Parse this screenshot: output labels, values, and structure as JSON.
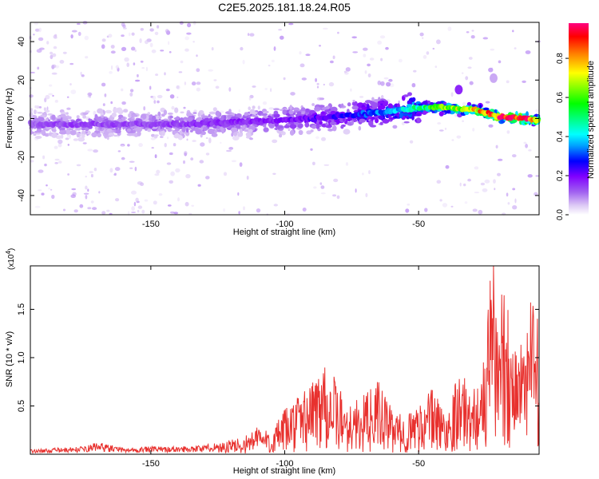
{
  "figure": {
    "title": "C2E5.2025.181.18.24.R05"
  },
  "chart_data": [
    {
      "type": "heatmap",
      "xlabel": "Height of straight line (km)",
      "ylabel": "Frequency (Hz)",
      "xlim": [
        -195,
        -5
      ],
      "ylim": [
        -50,
        50
      ],
      "x_ticks": [
        -150,
        -100,
        -50
      ],
      "y_ticks": [
        -40,
        -20,
        0,
        20,
        40
      ],
      "colorbar": {
        "label": "Normalized spectral amplitude",
        "range": [
          0.0,
          0.98
        ],
        "ticks": [
          0.0,
          0.2,
          0.4,
          0.6,
          0.8
        ],
        "colors": [
          "#ffffff",
          "#dcc8f5",
          "#a060f0",
          "#8000ff",
          "#0000ff",
          "#00a0ff",
          "#00ffff",
          "#00ff80",
          "#00ff00",
          "#80ff00",
          "#ffff00",
          "#ff8000",
          "#ff0000",
          "#ff0080"
        ]
      },
      "ridge": {
        "x": [
          -195,
          -180,
          -160,
          -140,
          -120,
          -100,
          -80,
          -60,
          -45,
          -30,
          -20,
          -10,
          -5
        ],
        "frequency": [
          -3,
          -3,
          -3,
          -3,
          -2,
          -1,
          1,
          4,
          6,
          5,
          1,
          0,
          -1
        ],
        "amplitude": [
          0.15,
          0.18,
          0.17,
          0.18,
          0.2,
          0.22,
          0.28,
          0.38,
          0.6,
          0.75,
          0.9,
          0.95,
          0.8
        ]
      },
      "features": [
        {
          "x": -35,
          "frequency": 15,
          "amplitude": 0.2
        },
        {
          "x": -22,
          "frequency": 21,
          "amplitude": 0.1
        }
      ]
    },
    {
      "type": "line",
      "xlabel": "Height of straight line (km)",
      "ylabel": "SNR (10 * v/v)",
      "y_multiplier": "(x10",
      "y_multiplier_exp": "4",
      "y_multiplier_close": ")",
      "xlim": [
        -195,
        -5
      ],
      "ylim": [
        0,
        1.95
      ],
      "x_ticks": [
        -150,
        -100,
        -50
      ],
      "y_ticks": [
        0.5,
        1.0,
        1.5
      ],
      "y_tick_labels": [
        "0.5",
        "1.0",
        "1.5"
      ],
      "line_color": "#e8312e",
      "series": [
        {
          "x": [
            -195,
            -185,
            -175,
            -170,
            -160,
            -150,
            -140,
            -130,
            -120,
            -115,
            -110,
            -105,
            -100,
            -95,
            -90,
            -85,
            -80,
            -75,
            -70,
            -65,
            -60,
            -55,
            -50,
            -45,
            -40,
            -35,
            -30,
            -25,
            -22,
            -20,
            -18,
            -15,
            -12,
            -10,
            -8,
            -5
          ],
          "y": [
            0.03,
            0.04,
            0.05,
            0.08,
            0.04,
            0.05,
            0.05,
            0.06,
            0.1,
            0.12,
            0.2,
            0.15,
            0.3,
            0.4,
            0.5,
            0.7,
            0.45,
            0.35,
            0.4,
            0.5,
            0.3,
            0.25,
            0.35,
            0.45,
            0.3,
            0.7,
            0.5,
            0.8,
            1.95,
            1.0,
            1.6,
            0.9,
            1.1,
            0.8,
            1.4,
            1.0
          ]
        }
      ]
    }
  ]
}
